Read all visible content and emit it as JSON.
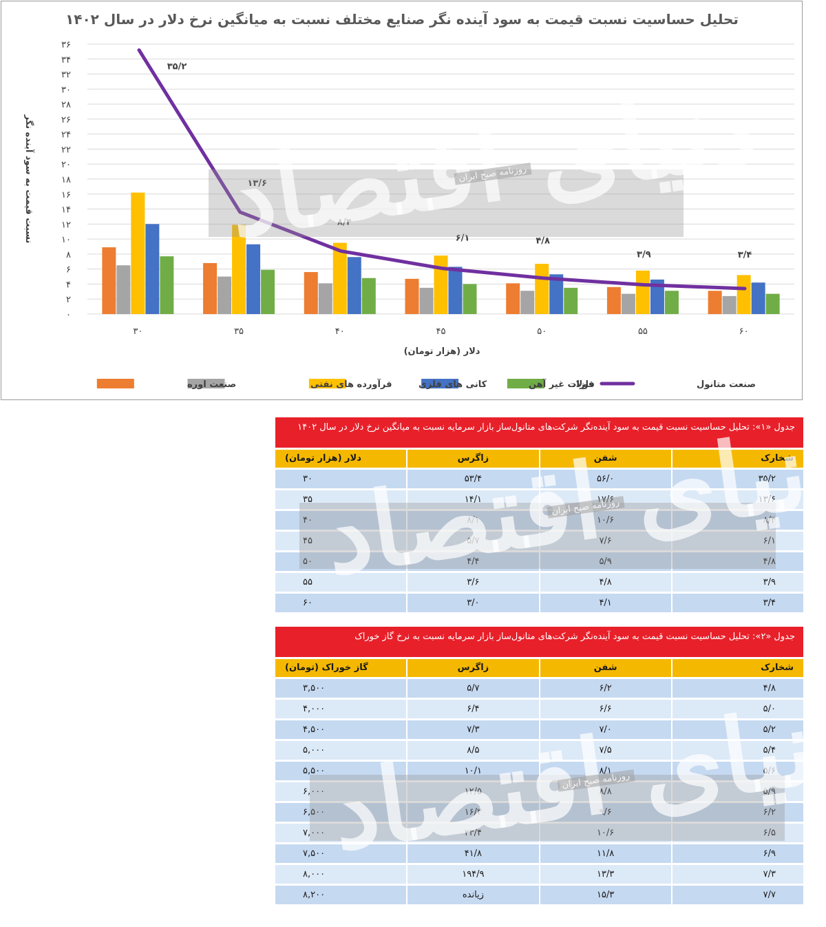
{
  "chart_data": {
    "type": "bar",
    "title": "تحلیل حساسیت نسبت قیمت به سود آینده نگر صنایع مختلف نسبت به میانگین نرخ دلار در سال ۱۴۰۲",
    "xlabel": "دلار (هزار تومان)",
    "ylabel": "نسبت قیمت به سود آینده نگر",
    "categories": [
      "۳۰",
      "۳۵",
      "۴۰",
      "۴۵",
      "۵۰",
      "۵۵",
      "۶۰"
    ],
    "yticks": [
      "۰",
      "۲",
      "۴",
      "۶",
      "۸",
      "۱۰",
      "۱۲",
      "۱۴",
      "۱۶",
      "۱۸",
      "۲۰",
      "۲۲",
      "۲۴",
      "۲۶",
      "۲۸",
      "۳۰",
      "۳۲",
      "۳۴",
      "۳۶"
    ],
    "ylim": [
      0,
      36
    ],
    "grid": true,
    "legend_position": "bottom",
    "series": [
      {
        "name": "صنعت اوره",
        "type": "bar",
        "color": "#ed7d31",
        "values": [
          8.9,
          6.8,
          5.6,
          4.7,
          4.1,
          3.6,
          3.1
        ]
      },
      {
        "name": "فرآورده های نفتی",
        "type": "bar",
        "color": "#a5a5a5",
        "values": [
          6.5,
          5.0,
          4.1,
          3.5,
          3.1,
          2.7,
          2.4
        ]
      },
      {
        "name": "کانی های فلزی",
        "type": "bar",
        "color": "#ffc000",
        "values": [
          16.2,
          11.9,
          9.5,
          7.8,
          6.7,
          5.8,
          5.2
        ]
      },
      {
        "name": "فلزات غیر آهن",
        "type": "bar",
        "color": "#4472c4",
        "values": [
          12.0,
          9.3,
          7.6,
          6.3,
          5.3,
          4.6,
          4.2
        ]
      },
      {
        "name": "فولاد",
        "type": "bar",
        "color": "#70ad47",
        "values": [
          7.7,
          5.9,
          4.8,
          4.0,
          3.5,
          3.1,
          2.7
        ]
      },
      {
        "name": "صنعت متانول",
        "type": "line",
        "color": "#7030a0",
        "values": [
          35.2,
          13.6,
          8.4,
          6.1,
          4.8,
          3.9,
          3.4
        ],
        "labels": [
          "۳۵/۲",
          "۱۳/۶",
          "۸/۴",
          "۶/۱",
          "۴/۸",
          "۳/۹",
          "۳/۴"
        ]
      }
    ]
  },
  "watermark": {
    "logo_text": "دنیای اقتصاد",
    "label": "روزنامه صبح ایران"
  },
  "table1": {
    "title": "جدول «۱»: تحلیل حساسیت نسبت قیمت به سود آینده‌نگر شرکت‌های متانول‌ساز بازار سرمایه نسبت به میانگین نرخ دلار در سال ۱۴۰۲",
    "headers": [
      "شخارک",
      "شفن",
      "زاگرس",
      "دلار (هزار تومان)"
    ],
    "rows": [
      [
        "۳۵/۲",
        "۵۶/۰",
        "۵۳/۴",
        "۳۰"
      ],
      [
        "۱۳/۶",
        "۱۷/۶",
        "۱۴/۱",
        "۳۵"
      ],
      [
        "۸/۴",
        "۱۰/۶",
        "۸/۱",
        "۴۰"
      ],
      [
        "۶/۱",
        "۷/۶",
        "۵/۷",
        "۴۵"
      ],
      [
        "۴/۸",
        "۵/۹",
        "۴/۴",
        "۵۰"
      ],
      [
        "۳/۹",
        "۴/۸",
        "۳/۶",
        "۵۵"
      ],
      [
        "۳/۴",
        "۴/۱",
        "۳/۰",
        "۶۰"
      ]
    ]
  },
  "table2": {
    "title": "جدول «۲»: تحلیل حساسیت نسبت قیمت به سود آینده‌نگر شرکت‌های متانول‌ساز بازار سرمایه نسبت به نرخ گاز خوراک",
    "headers": [
      "شخارک",
      "شفن",
      "زاگرس",
      "گاز خوراک (تومان)"
    ],
    "rows": [
      [
        "۴/۸",
        "۶/۲",
        "۵/۷",
        "۳,۵۰۰"
      ],
      [
        "۵/۰",
        "۶/۶",
        "۶/۴",
        "۴,۰۰۰"
      ],
      [
        "۵/۲",
        "۷/۰",
        "۷/۳",
        "۴,۵۰۰"
      ],
      [
        "۵/۴",
        "۷/۵",
        "۸/۵",
        "۵,۰۰۰"
      ],
      [
        "۵/۶",
        "۸/۱",
        "۱۰/۱",
        "۵,۵۰۰"
      ],
      [
        "۵/۹",
        "۸/۸",
        "۱۲/۵",
        "۶,۰۰۰"
      ],
      [
        "۶/۲",
        "۹/۶",
        "۱۶/۳",
        "۶,۵۰۰"
      ],
      [
        "۶/۵",
        "۱۰/۶",
        "۲۳/۴",
        "۷,۰۰۰"
      ],
      [
        "۶/۹",
        "۱۱/۸",
        "۴۱/۸",
        "۷,۵۰۰"
      ],
      [
        "۷/۳",
        "۱۳/۳",
        "۱۹۴/۹",
        "۸,۰۰۰"
      ],
      [
        "۷/۷",
        "۱۵/۳",
        "زیانده",
        "۸,۲۰۰"
      ]
    ]
  }
}
